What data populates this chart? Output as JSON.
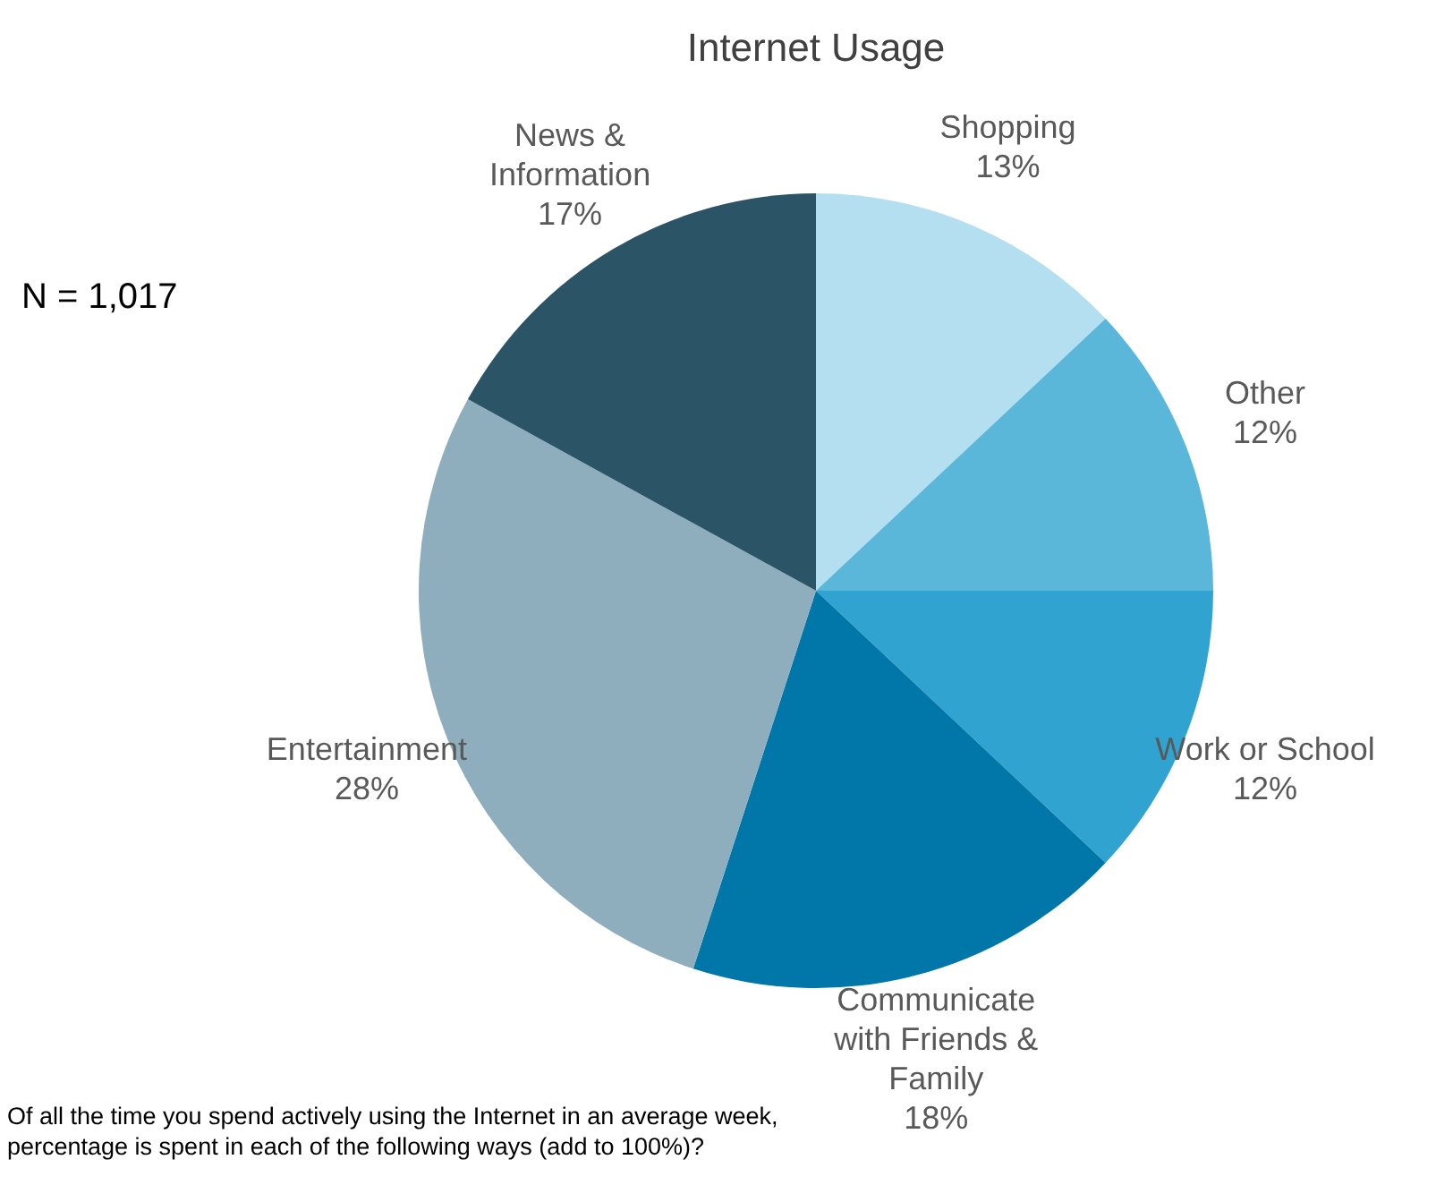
{
  "chart_data": {
    "type": "pie",
    "title": "Internet Usage",
    "categories": [
      "Shopping",
      "Other",
      "Work or School",
      "Communicate with Friends & Family",
      "Entertainment",
      "News & Information"
    ],
    "values": [
      13,
      12,
      12,
      18,
      28,
      17
    ],
    "colors": [
      "#b4dff0",
      "#5ab7da",
      "#30a3d0",
      "#0077a8",
      "#8eaebe",
      "#2b5466"
    ],
    "value_labels": [
      "13%",
      "12%",
      "12%",
      "18%",
      "28%",
      "17%"
    ],
    "annotations": [
      "N = 1,017",
      "Of all the time you spend actively using the Internet in an average week,",
      "percentage is spent in each of the following ways (add to 100%)?"
    ]
  }
}
